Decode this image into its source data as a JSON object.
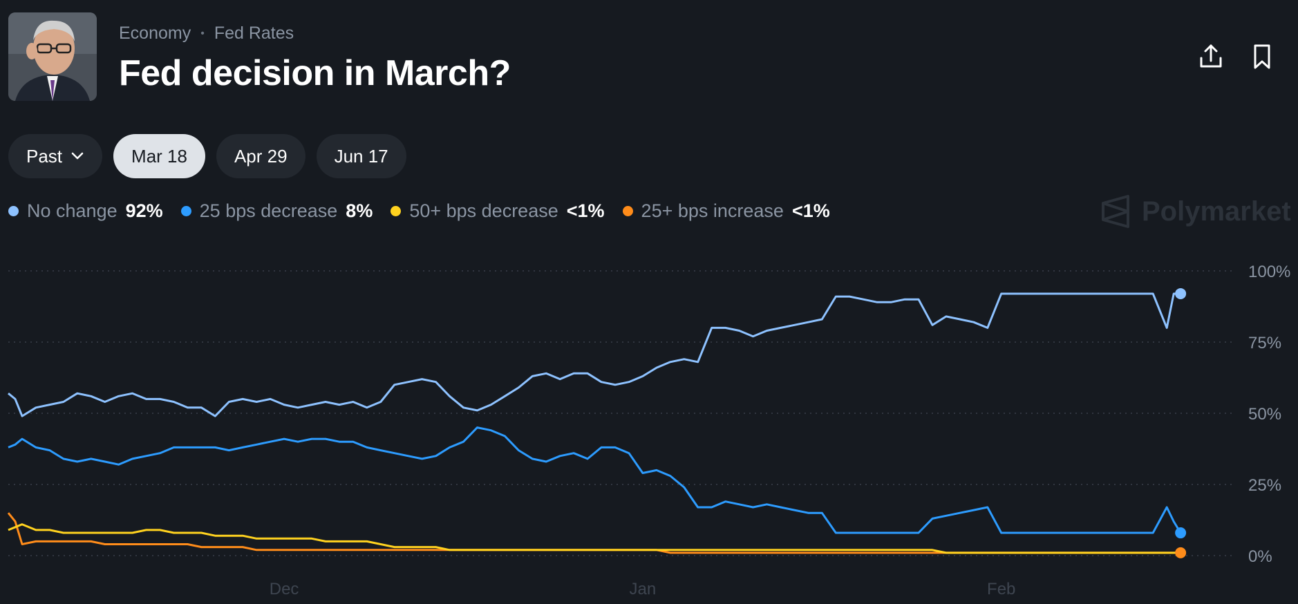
{
  "header": {
    "breadcrumb": [
      "Economy",
      "Fed Rates"
    ],
    "title": "Fed decision in March?"
  },
  "tabs": [
    {
      "label": "Past"
    },
    {
      "label": "Mar 18"
    },
    {
      "label": "Apr 29"
    },
    {
      "label": "Jun 17"
    }
  ],
  "legend": [
    {
      "label": "No change",
      "value": "92%",
      "color": "#8ec2ff"
    },
    {
      "label": "25 bps decrease",
      "value": "8%",
      "color": "#2d9cff"
    },
    {
      "label": "50+ bps decrease",
      "value": "<1%",
      "color": "#ffd21f"
    },
    {
      "label": "25+ bps increase",
      "value": "<1%",
      "color": "#ff8c1a"
    }
  ],
  "watermark": "Polymarket",
  "chart_data": {
    "type": "line",
    "title": "Fed decision in March?",
    "x": [
      0,
      0.5,
      1,
      2,
      3,
      4,
      5,
      6,
      7,
      8,
      9,
      10,
      11,
      12,
      13,
      14,
      15,
      16,
      17,
      18,
      19,
      20,
      21,
      22,
      23,
      24,
      25,
      26,
      27,
      28,
      29,
      30,
      31,
      32,
      33,
      34,
      35,
      36,
      37,
      38,
      39,
      40,
      41,
      42,
      43,
      44,
      45,
      46,
      47,
      48,
      49,
      50,
      51,
      52,
      53,
      54,
      55,
      56,
      57,
      58,
      59,
      60,
      61,
      62,
      63,
      64,
      65,
      66,
      67,
      68,
      69,
      70,
      71,
      72,
      73,
      74,
      75,
      76,
      77,
      78,
      79,
      80,
      81,
      82,
      83,
      84,
      84.5,
      85
    ],
    "x_ticks": [
      {
        "label": "Dec",
        "x": 20
      },
      {
        "label": "Jan",
        "x": 46
      },
      {
        "label": "Feb",
        "x": 72
      }
    ],
    "ylim": [
      0,
      100
    ],
    "y_ticks": [
      "0%",
      "25%",
      "50%",
      "75%",
      "100%"
    ],
    "series": [
      {
        "name": "No change",
        "color": "#8ec2ff",
        "values": [
          57,
          55,
          49,
          52,
          53,
          54,
          57,
          56,
          54,
          56,
          57,
          55,
          55,
          54,
          52,
          52,
          49,
          54,
          55,
          54,
          55,
          53,
          52,
          53,
          54,
          53,
          54,
          52,
          54,
          60,
          61,
          62,
          61,
          56,
          52,
          51,
          53,
          56,
          59,
          63,
          64,
          62,
          64,
          64,
          61,
          60,
          61,
          63,
          66,
          68,
          69,
          68,
          80,
          80,
          79,
          77,
          79,
          80,
          81,
          82,
          83,
          91,
          91,
          90,
          89,
          89,
          90,
          90,
          81,
          84,
          83,
          82,
          80,
          92,
          92,
          92,
          92,
          92,
          92,
          92,
          92,
          92,
          92,
          92,
          92,
          80,
          92,
          92
        ]
      },
      {
        "name": "25 bps decrease",
        "color": "#2d9cff",
        "values": [
          38,
          39,
          41,
          38,
          37,
          34,
          33,
          34,
          33,
          32,
          34,
          35,
          36,
          38,
          38,
          38,
          38,
          37,
          38,
          39,
          40,
          41,
          40,
          41,
          41,
          40,
          40,
          38,
          37,
          36,
          35,
          34,
          35,
          38,
          40,
          45,
          44,
          42,
          37,
          34,
          33,
          35,
          36,
          34,
          38,
          38,
          36,
          29,
          30,
          28,
          24,
          17,
          17,
          19,
          18,
          17,
          18,
          17,
          16,
          15,
          15,
          8,
          8,
          8,
          8,
          8,
          8,
          8,
          13,
          14,
          15,
          16,
          17,
          8,
          8,
          8,
          8,
          8,
          8,
          8,
          8,
          8,
          8,
          8,
          8,
          17,
          12,
          8
        ]
      },
      {
        "name": "50+ bps decrease",
        "color": "#ffd21f",
        "values": [
          9,
          10,
          11,
          9,
          9,
          8,
          8,
          8,
          8,
          8,
          8,
          9,
          9,
          8,
          8,
          8,
          7,
          7,
          7,
          6,
          6,
          6,
          6,
          6,
          5,
          5,
          5,
          5,
          4,
          3,
          3,
          3,
          3,
          2,
          2,
          2,
          2,
          2,
          2,
          2,
          2,
          2,
          2,
          2,
          2,
          2,
          2,
          2,
          2,
          2,
          2,
          2,
          2,
          2,
          2,
          2,
          2,
          2,
          2,
          2,
          2,
          2,
          2,
          2,
          2,
          2,
          2,
          2,
          2,
          1,
          1,
          1,
          1,
          1,
          1,
          1,
          1,
          1,
          1,
          1,
          1,
          1,
          1,
          1,
          1,
          1,
          1,
          1
        ]
      },
      {
        "name": "25+ bps increase",
        "color": "#ff8c1a",
        "values": [
          15,
          12,
          4,
          5,
          5,
          5,
          5,
          5,
          4,
          4,
          4,
          4,
          4,
          4,
          4,
          3,
          3,
          3,
          3,
          2,
          2,
          2,
          2,
          2,
          2,
          2,
          2,
          2,
          2,
          2,
          2,
          2,
          2,
          2,
          2,
          2,
          2,
          2,
          2,
          2,
          2,
          2,
          2,
          2,
          2,
          2,
          2,
          2,
          2,
          1,
          1,
          1,
          1,
          1,
          1,
          1,
          1,
          1,
          1,
          1,
          1,
          1,
          1,
          1,
          1,
          1,
          1,
          1,
          1,
          1,
          1,
          1,
          1,
          1,
          1,
          1,
          1,
          1,
          1,
          1,
          1,
          1,
          1,
          1,
          1,
          1,
          1,
          1
        ]
      }
    ]
  }
}
